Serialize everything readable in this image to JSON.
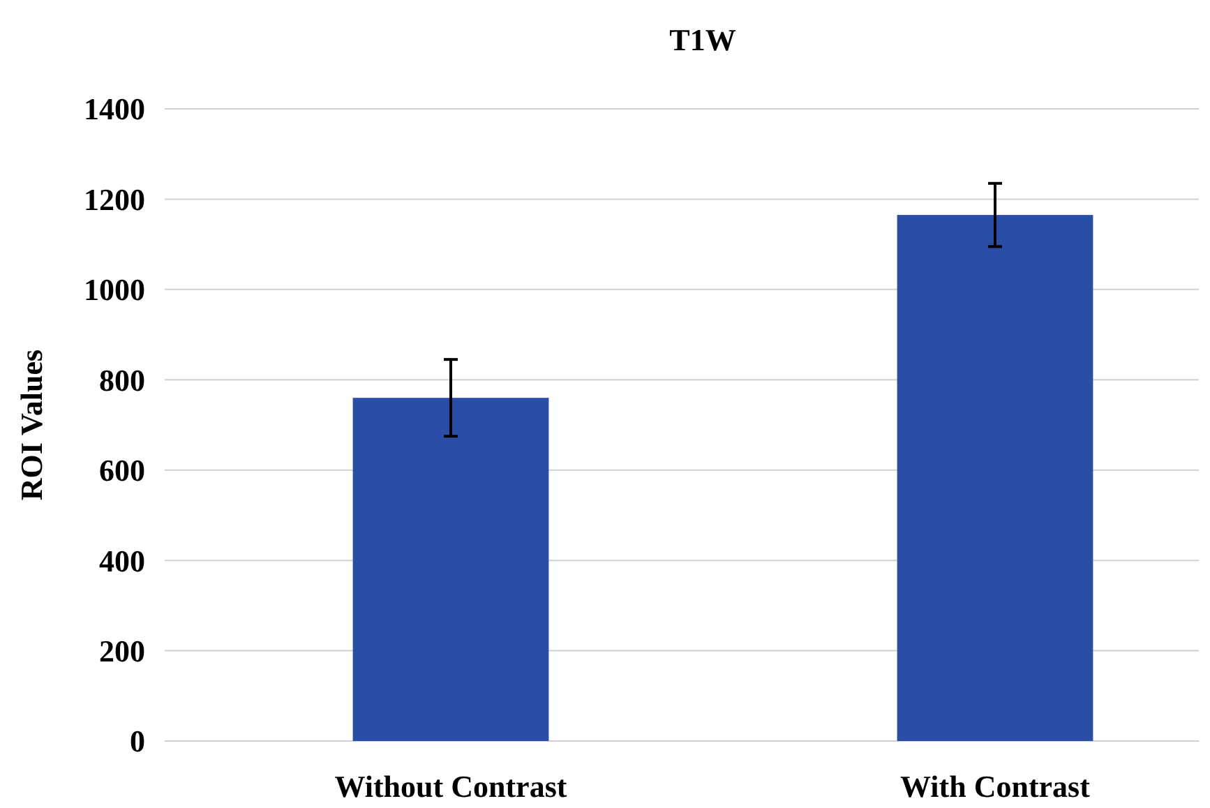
{
  "chart_data": {
    "type": "bar",
    "title": "T1W",
    "ylabel": "ROI Values",
    "categories": [
      "Without Contrast",
      "With Contrast"
    ],
    "values": [
      760,
      1165
    ],
    "errors": [
      85,
      70
    ],
    "color": "#2a4ea6",
    "ylim": [
      0,
      1400
    ],
    "yticks": [
      0,
      200,
      400,
      600,
      800,
      1000,
      1200,
      1400
    ],
    "grid": "y"
  }
}
